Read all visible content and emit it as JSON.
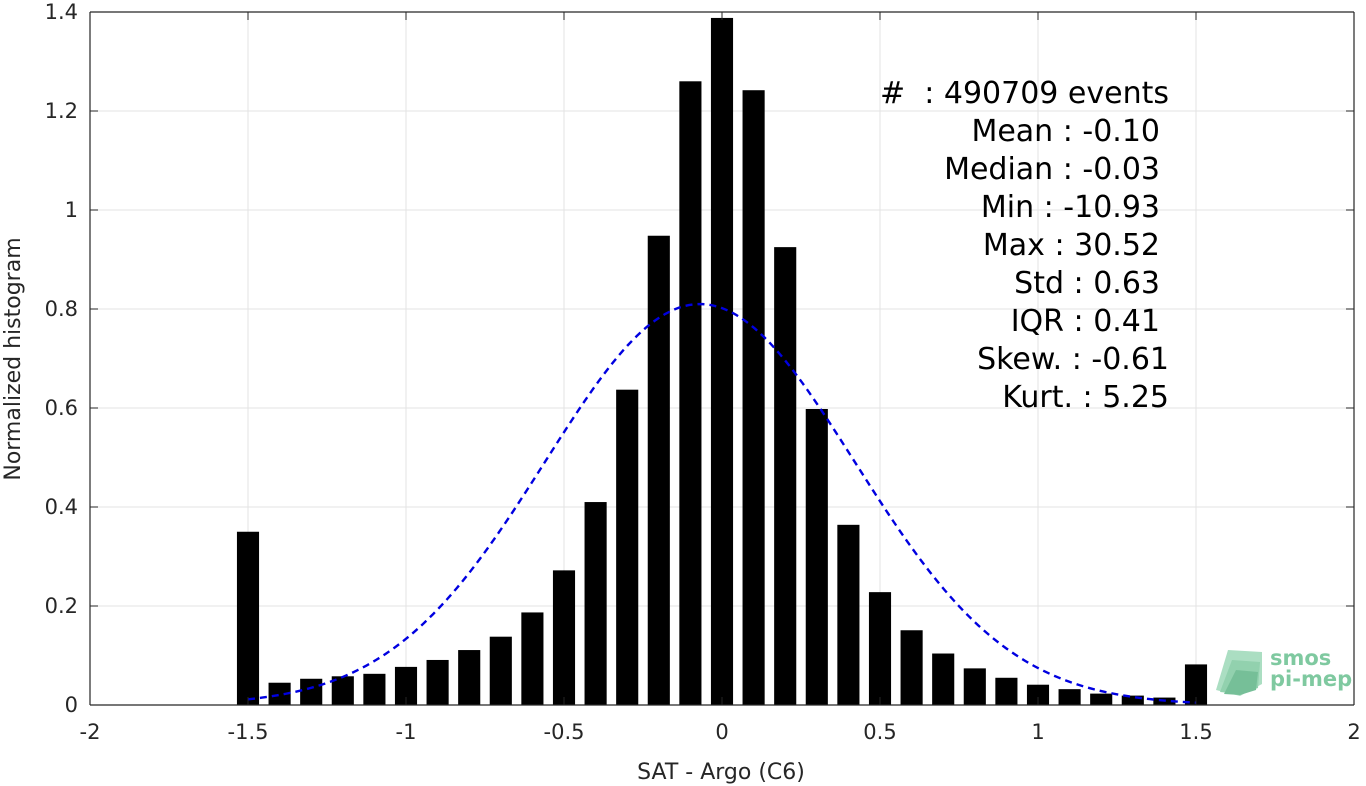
{
  "chart_data": {
    "type": "bar",
    "xlabel": "SAT - Argo (C6)",
    "ylabel": "Normalized histogram",
    "xlim": [
      -2,
      2
    ],
    "ylim": [
      0,
      1.4
    ],
    "grid": true,
    "xticks": [
      -2,
      -1.5,
      -1,
      -0.5,
      0,
      0.5,
      1,
      1.5,
      2
    ],
    "xtick_labels": [
      "-2",
      "-1.5",
      "-1",
      "-0.5",
      "0",
      "0.5",
      "1",
      "1.5",
      "2"
    ],
    "yticks": [
      0,
      0.2,
      0.4,
      0.6,
      0.8,
      1,
      1.2,
      1.4
    ],
    "ytick_labels": [
      "0",
      "0.2",
      "0.4",
      "0.6",
      "0.8",
      "1",
      "1.2",
      "1.4"
    ],
    "bar_color": "#000000",
    "bin_width": 0.1,
    "bar_fraction": 0.7,
    "x": [
      -1.5,
      -1.4,
      -1.3,
      -1.2,
      -1.1,
      -1.0,
      -0.9,
      -0.8,
      -0.7,
      -0.6,
      -0.5,
      -0.4,
      -0.3,
      -0.2,
      -0.1,
      0.0,
      0.1,
      0.2,
      0.3,
      0.4,
      0.5,
      0.6,
      0.7,
      0.8,
      0.9,
      1.0,
      1.1,
      1.2,
      1.3,
      1.4,
      1.5
    ],
    "values": [
      0.35,
      0.045,
      0.053,
      0.058,
      0.063,
      0.077,
      0.091,
      0.111,
      0.138,
      0.187,
      0.272,
      0.41,
      0.637,
      0.948,
      1.26,
      1.388,
      1.242,
      0.925,
      0.598,
      0.364,
      0.228,
      0.151,
      0.104,
      0.074,
      0.055,
      0.041,
      0.032,
      0.023,
      0.019,
      0.015,
      0.082
    ],
    "fit_curve": {
      "type": "gaussian",
      "style": "dashed",
      "color": "#0000e0",
      "mean": -0.07,
      "std": 0.49,
      "peak": 0.81,
      "x_range": [
        -1.5,
        1.5
      ]
    },
    "stats": {
      "line1": "#  : 490709 events",
      "line2": "Mean : -0.10",
      "line3": "Median : -0.03",
      "line4": "Min : -10.93",
      "line5": "Max : 30.52",
      "line6": "Std : 0.63",
      "line7": "IQR : 0.41",
      "line8": "Skew. : -0.61",
      "line9": "Kurt. : 5.25"
    },
    "logo": {
      "line1": "smos",
      "line2": "pi-mep",
      "color": "#7fc9a0"
    }
  }
}
